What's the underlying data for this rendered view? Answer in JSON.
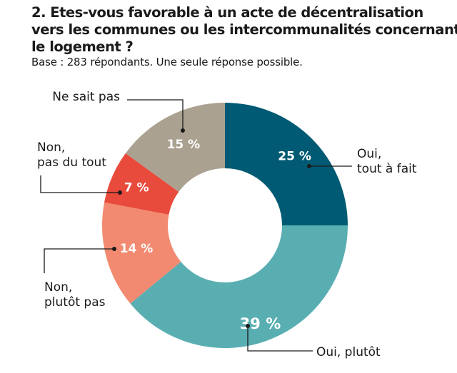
{
  "header": {
    "title_lines": [
      "2. Etes-vous favorable à un acte de décentralisation",
      "vers les communes ou les intercommunalités concernant",
      "le logement ?"
    ],
    "subtitle": "Base : 283 répondants. Une seule réponse possible."
  },
  "chart_data": {
    "type": "pie",
    "donut": true,
    "title": "2. Etes-vous favorable à un acte de décentralisation vers les communes ou les intercommunalités concernant le logement ?",
    "unit": "%",
    "slices": [
      {
        "label": "Oui, tout à fait",
        "label_lines": [
          "Oui,",
          "tout à fait"
        ],
        "value": 25,
        "value_label": "25 %",
        "color": "#005a73"
      },
      {
        "label": "Oui, plutôt",
        "label_lines": [
          "Oui, plutôt"
        ],
        "value": 39,
        "value_label": "39 %",
        "color": "#59aeb2"
      },
      {
        "label": "Non, plutôt pas",
        "label_lines": [
          "Non,",
          "plutôt pas"
        ],
        "value": 14,
        "value_label": "14 %",
        "color": "#f18a70"
      },
      {
        "label": "Non, pas du tout",
        "label_lines": [
          "Non,",
          "pas du tout"
        ],
        "value": 7,
        "value_label": "7 %",
        "color": "#e84a3b"
      },
      {
        "label": "Ne sait pas",
        "label_lines": [
          "Ne sait pas"
        ],
        "value": 15,
        "value_label": "15 %",
        "color": "#aba191"
      }
    ]
  }
}
